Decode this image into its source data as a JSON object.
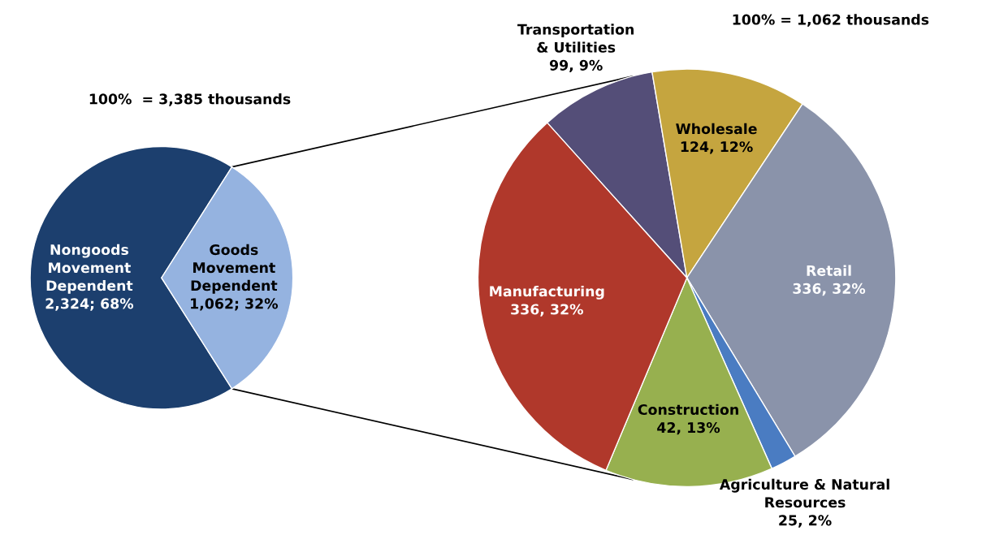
{
  "chart_data": [
    {
      "type": "pie",
      "categories": [
        "Nongoods\nMovement\nDependent",
        "Goods\nMovement\nDependent"
      ],
      "values": [
        68,
        32
      ],
      "value_labels": [
        "2,324; 68%",
        "1,062; 32%"
      ],
      "colors": [
        "#1c3f6e",
        "#95b3e0"
      ],
      "annotations": [
        "100%  = 3,385 thousands"
      ]
    },
    {
      "type": "pie",
      "categories": [
        "Transportation\n& Utilities",
        "Wholesale",
        "Retail",
        "Agriculture & Natural\nResources",
        "Construction",
        "Manufacturing"
      ],
      "values": [
        9,
        12,
        32,
        2,
        13,
        32
      ],
      "value_labels": [
        "99, 9%",
        "124, 12%",
        "336, 32%",
        "25, 2%",
        "42, 13%",
        "336, 32%"
      ],
      "colors": [
        "#544e78",
        "#c5a53f",
        "#8a93aa",
        "#4a7cc2",
        "#97b04f",
        "#b0382b"
      ],
      "annotations": [
        "100% = 1,062 thousands"
      ]
    }
  ]
}
